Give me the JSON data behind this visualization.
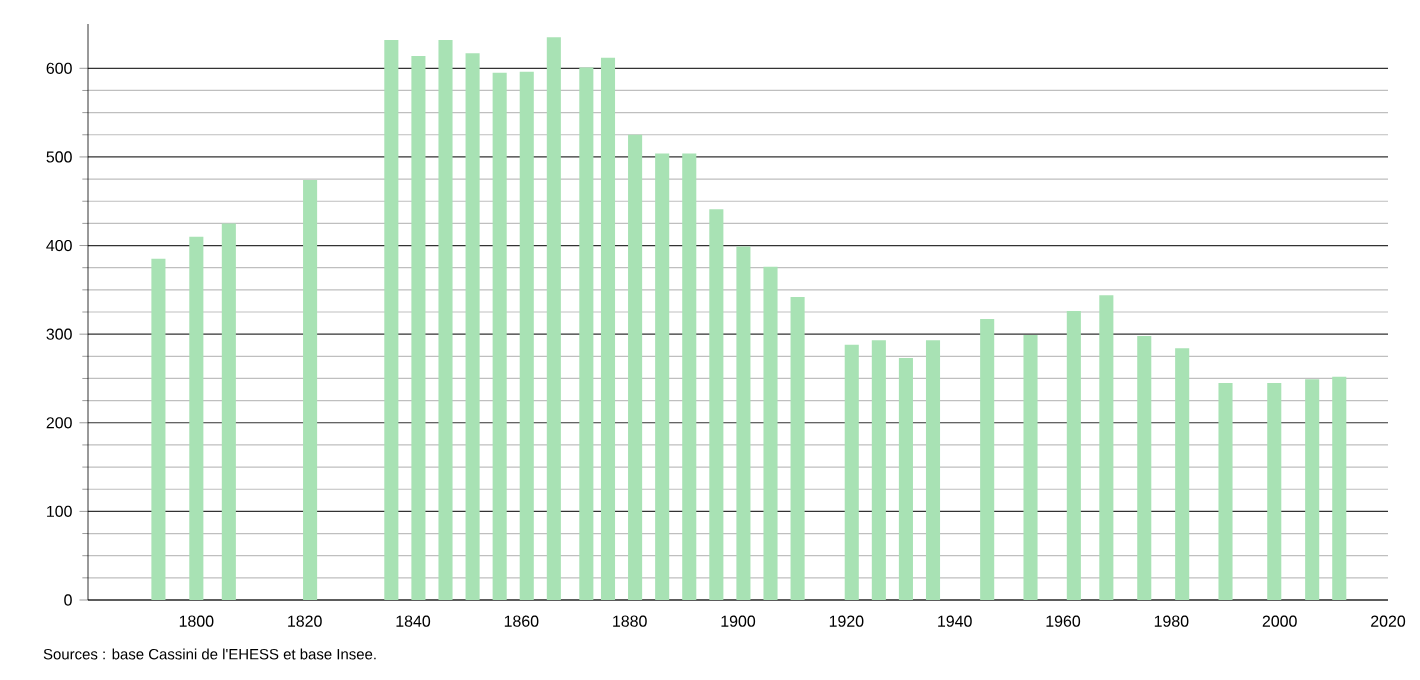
{
  "chart_data": {
    "type": "bar",
    "color": "#a8e2b4",
    "x": [
      1793,
      1800,
      1806,
      1821,
      1836,
      1841,
      1846,
      1851,
      1856,
      1861,
      1866,
      1872,
      1876,
      1881,
      1886,
      1891,
      1896,
      1901,
      1906,
      1911,
      1921,
      1926,
      1931,
      1936,
      1946,
      1954,
      1962,
      1968,
      1975,
      1982,
      1990,
      1999,
      2006,
      2011
    ],
    "values": [
      385,
      410,
      425,
      474,
      632,
      614,
      632,
      617,
      595,
      596,
      635,
      601,
      612,
      525,
      504,
      504,
      441,
      399,
      376,
      342,
      288,
      293,
      273,
      293,
      317,
      299,
      326,
      344,
      298,
      284,
      245,
      245,
      249,
      252
    ],
    "xlim": [
      1780,
      2020
    ],
    "xticks": [
      1800,
      1820,
      1840,
      1860,
      1880,
      1900,
      1920,
      1940,
      1960,
      1980,
      2000,
      2020
    ],
    "ylim": [
      0,
      650
    ],
    "yticks": [
      0,
      100,
      200,
      300,
      400,
      500,
      600
    ],
    "grid": "y",
    "annotations": [
      "Sources : base Cassini de l'EHESS et base Insee."
    ]
  }
}
